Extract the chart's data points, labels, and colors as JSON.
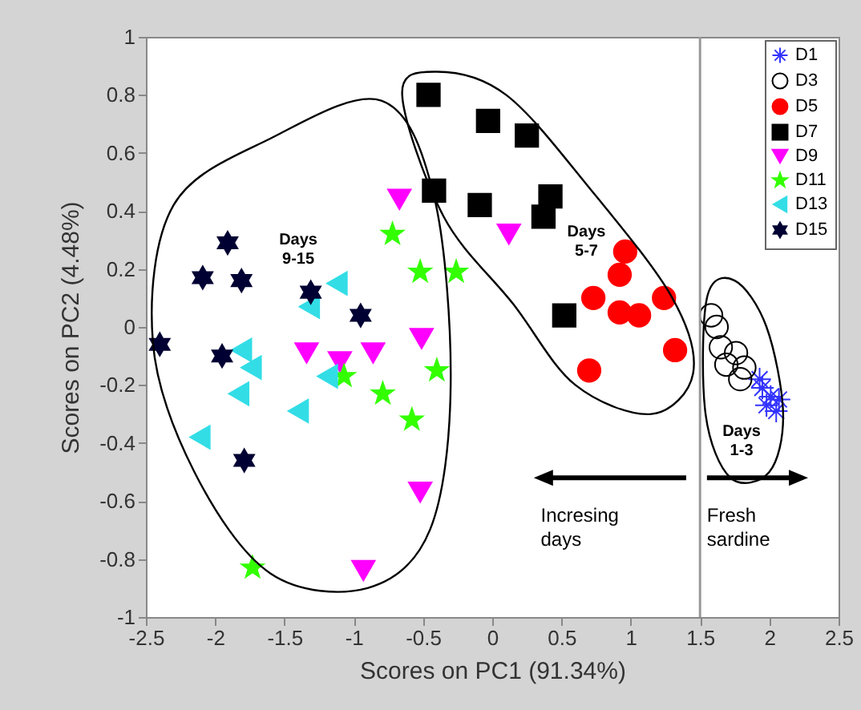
{
  "chart_data": {
    "type": "scatter",
    "xlabel": "Scores on PC1 (91.34%)",
    "ylabel": "Scores on PC2 (4.48%)",
    "xlim": [
      -2.5,
      2.5
    ],
    "xticks": [
      -2.5,
      -2,
      -1.5,
      -1,
      -0.5,
      0,
      0.5,
      1,
      1.5,
      2,
      2.5
    ],
    "ylim": [
      -1,
      1
    ],
    "yticks": [
      -1,
      -0.8,
      -0.6,
      -0.4,
      -0.2,
      0,
      0.2,
      0.4,
      0.6,
      0.8,
      1
    ],
    "grid": false,
    "legend": "top right",
    "ref_lines": [
      {
        "axis": "x",
        "value": 1.5,
        "color": "#999999"
      }
    ],
    "annotations": [
      "Days\n9-15",
      "Days\n5-7",
      "Days\n1-3",
      "Incresing\ndays",
      "Fresh\nsardine"
    ],
    "series": [
      {
        "name": "D1",
        "color": "#3333ff",
        "marker": "cross",
        "x": [
          1.93,
          1.95,
          1.98,
          2.01,
          2.05,
          2.07
        ],
        "values": [
          -0.18,
          -0.21,
          -0.27,
          -0.24,
          -0.29,
          -0.25
        ]
      },
      {
        "name": "D3",
        "color": "#000000",
        "marker": "circle",
        "x": [
          1.58,
          1.62,
          1.65,
          1.76,
          1.69,
          1.82,
          1.79
        ],
        "values": [
          0.04,
          0.0,
          -0.07,
          -0.09,
          -0.13,
          -0.14,
          -0.18
        ]
      },
      {
        "name": "D5",
        "color": "#ff0000",
        "marker": "circle",
        "x": [
          0.96,
          0.92,
          0.73,
          0.92,
          1.06,
          1.24,
          1.32,
          0.7
        ],
        "values": [
          0.26,
          0.18,
          0.1,
          0.05,
          0.04,
          0.1,
          -0.08,
          -0.15
        ]
      },
      {
        "name": "D7",
        "color": "#000000",
        "marker": "square",
        "x": [
          -0.46,
          -0.03,
          0.25,
          -0.42,
          -0.09,
          0.42,
          0.37,
          0.52
        ],
        "values": [
          0.8,
          0.71,
          0.66,
          0.47,
          0.42,
          0.45,
          0.38,
          0.04
        ]
      },
      {
        "name": "D9",
        "color": "#ff00ff",
        "marker": "triangle",
        "x": [
          -0.67,
          0.12,
          -0.51,
          -1.34,
          -1.1,
          -0.86,
          -0.52,
          -0.93
        ],
        "values": [
          0.44,
          0.32,
          -0.04,
          -0.09,
          -0.12,
          -0.09,
          -0.57,
          -0.84
        ]
      },
      {
        "name": "D11",
        "color": "#33ff00",
        "marker": "star",
        "x": [
          -0.72,
          -0.52,
          -0.26,
          -0.4,
          -0.79,
          -0.58,
          -1.07,
          -1.73
        ],
        "values": [
          0.32,
          0.19,
          0.19,
          -0.15,
          -0.23,
          -0.32,
          -0.17,
          -0.83
        ]
      },
      {
        "name": "D13",
        "color": "#33dde6",
        "marker": "triangle",
        "x": [
          -1.12,
          -1.32,
          -1.81,
          -1.74,
          -1.83,
          -2.11,
          -1.4,
          -1.19
        ],
        "values": [
          0.15,
          0.07,
          -0.08,
          -0.14,
          -0.23,
          -0.38,
          -0.29,
          -0.17
        ]
      },
      {
        "name": "D15",
        "color": "#000033",
        "marker": "cross",
        "x": [
          -2.4,
          -1.91,
          -2.09,
          -1.81,
          -1.95,
          -1.31,
          -0.95,
          -1.79
        ],
        "values": [
          -0.06,
          0.29,
          0.17,
          0.16,
          -0.1,
          0.12,
          0.04,
          -0.46
        ]
      }
    ]
  }
}
